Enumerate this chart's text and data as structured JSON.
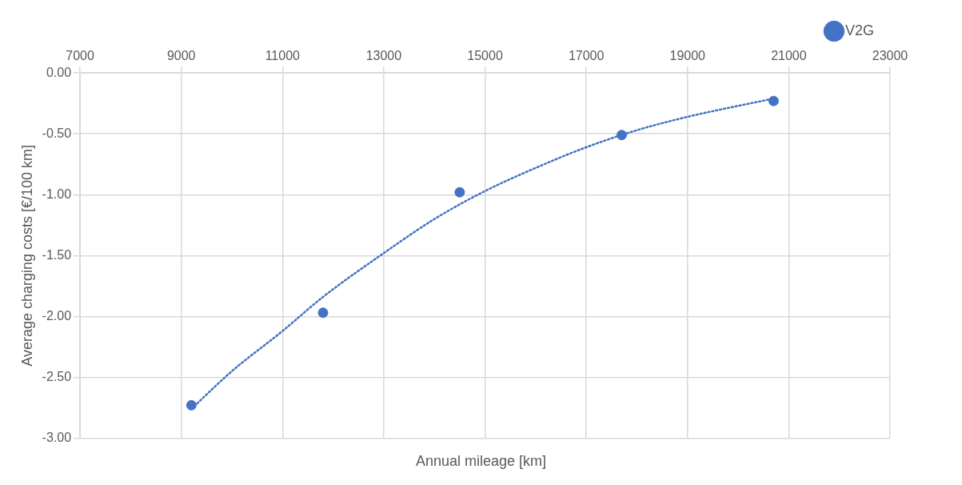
{
  "chart_data": {
    "type": "scatter",
    "xlabel": "Annual mileage [km]",
    "ylabel": "Average charging costs [€/100 km]",
    "xlim": [
      7000,
      23000
    ],
    "xticks": [
      7000,
      9000,
      11000,
      13000,
      15000,
      17000,
      19000,
      21000,
      23000
    ],
    "ylim": [
      -3,
      0
    ],
    "yticks": [
      {
        "value": 0,
        "label": "0.00"
      },
      {
        "value": -0.5,
        "label": "-0.50"
      },
      {
        "value": -1,
        "label": "-1.00"
      },
      {
        "value": -1.5,
        "label": "-1.50"
      },
      {
        "value": -2,
        "label": "-2.00"
      },
      {
        "value": -2.5,
        "label": "-2.50"
      },
      {
        "value": -3,
        "label": "-3.00"
      }
    ],
    "grid": true,
    "legend": "top",
    "marker": "circle",
    "series": [
      {
        "name": "V2G",
        "color": "#4472c4",
        "x": [
          9200,
          11800,
          14500,
          17700,
          20700
        ],
        "values": [
          -2.73,
          -1.97,
          -0.98,
          -0.51,
          -0.23
        ]
      },
      {
        "type": "line",
        "color": "#4472c4",
        "line_style": "dotted",
        "marker": "none",
        "x": [
          9200,
          10000,
          11000,
          11800,
          13000,
          14000,
          15000,
          16000,
          17000,
          18000,
          19000,
          20000,
          20700
        ],
        "values": [
          -2.76,
          -2.45,
          -2.12,
          -1.84,
          -1.48,
          -1.2,
          -0.97,
          -0.78,
          -0.61,
          -0.47,
          -0.36,
          -0.27,
          -0.21
        ]
      }
    ]
  }
}
